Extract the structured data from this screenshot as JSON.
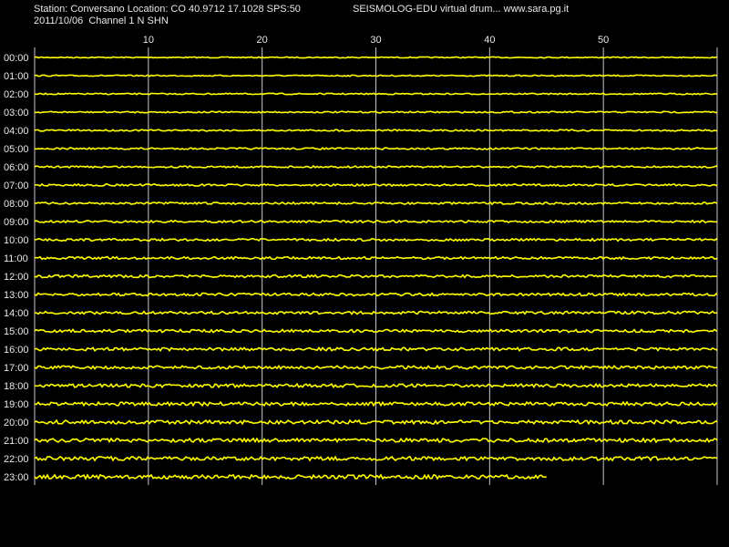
{
  "chart_data": {
    "type": "drum",
    "title": "Station: Conversano Location: CO 40.9712 17.1028 SPS:50",
    "subtitle": "SEISMOLOG-EDU virtual drum... www.sara.pg.it",
    "date_channel": "2011/10/06  Channel 1 N SHN",
    "color": "#ffff00",
    "xlim": [
      0,
      60
    ],
    "xticks": [
      10,
      20,
      30,
      40,
      50
    ],
    "grid": true,
    "categories": [
      "00:00",
      "01:00",
      "02:00",
      "03:00",
      "04:00",
      "05:00",
      "06:00",
      "07:00",
      "08:00",
      "09:00",
      "10:00",
      "11:00",
      "12:00",
      "13:00",
      "14:00",
      "15:00",
      "16:00",
      "17:00",
      "18:00",
      "19:00",
      "20:00",
      "21:00",
      "22:00",
      "23:00"
    ],
    "values": [
      60,
      60,
      60,
      60,
      60,
      60,
      60,
      60,
      60,
      60,
      60,
      60,
      60,
      60,
      60,
      60,
      60,
      60,
      60,
      60,
      60,
      60,
      60,
      45
    ]
  }
}
